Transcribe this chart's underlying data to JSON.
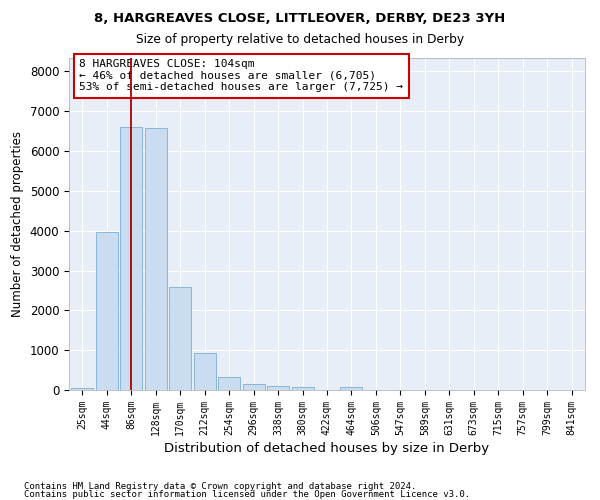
{
  "title1": "8, HARGREAVES CLOSE, LITTLEOVER, DERBY, DE23 3YH",
  "title2": "Size of property relative to detached houses in Derby",
  "xlabel": "Distribution of detached houses by size in Derby",
  "ylabel": "Number of detached properties",
  "bar_color": "#c9dcf0",
  "bar_edge_color": "#7bafd4",
  "background_color": "#e8eef8",
  "grid_color": "#ffffff",
  "annotation_box_color": "#cc0000",
  "vline_color": "#aa0000",
  "categories": [
    "25sqm",
    "44sqm",
    "86sqm",
    "128sqm",
    "170sqm",
    "212sqm",
    "254sqm",
    "296sqm",
    "338sqm",
    "380sqm",
    "422sqm",
    "464sqm",
    "506sqm",
    "547sqm",
    "589sqm",
    "631sqm",
    "673sqm",
    "715sqm",
    "757sqm",
    "799sqm",
    "841sqm"
  ],
  "values": [
    60,
    3980,
    6600,
    6580,
    2580,
    930,
    320,
    140,
    95,
    65,
    0,
    75,
    0,
    0,
    0,
    0,
    0,
    0,
    0,
    0,
    0
  ],
  "vline_x": 2.0,
  "ylim": [
    0,
    8350
  ],
  "yticks": [
    0,
    1000,
    2000,
    3000,
    4000,
    5000,
    6000,
    7000,
    8000
  ],
  "annotation_text": "8 HARGREAVES CLOSE: 104sqm\n← 46% of detached houses are smaller (6,705)\n53% of semi-detached houses are larger (7,725) →",
  "footer1": "Contains HM Land Registry data © Crown copyright and database right 2024.",
  "footer2": "Contains public sector information licensed under the Open Government Licence v3.0."
}
